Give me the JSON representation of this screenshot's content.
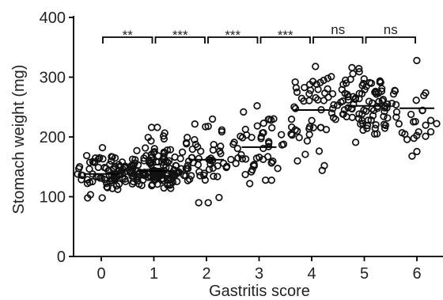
{
  "chart_data": {
    "type": "scatter",
    "xlabel": "Gastritis score",
    "ylabel": "Stomach weight (mg)",
    "categories": [
      "0",
      "1",
      "2",
      "3",
      "4",
      "5",
      "6"
    ],
    "x": [
      0,
      1,
      2,
      3,
      4,
      5,
      6
    ],
    "ylim": [
      0,
      400
    ],
    "yticks": [
      0,
      100,
      200,
      300,
      400
    ],
    "yticklabels": [
      "0",
      "100",
      "200",
      "300",
      "400"
    ],
    "grid": false,
    "group_medians": [
      138,
      143,
      162,
      183,
      245,
      252,
      248
    ],
    "group_ranges": [
      [
        98,
        182
      ],
      [
        114,
        216
      ],
      [
        90,
        230
      ],
      [
        122,
        252
      ],
      [
        144,
        318
      ],
      [
        191,
        316
      ],
      [
        168,
        328
      ]
    ],
    "group_point_counts": [
      75,
      140,
      60,
      50,
      55,
      85,
      30
    ],
    "comparisons": [
      {
        "groups": [
          "0",
          "1"
        ],
        "label": "**"
      },
      {
        "groups": [
          "1",
          "2"
        ],
        "label": "***"
      },
      {
        "groups": [
          "2",
          "3"
        ],
        "label": "***"
      },
      {
        "groups": [
          "3",
          "4"
        ],
        "label": "***"
      },
      {
        "groups": [
          "4",
          "5"
        ],
        "label": "ns"
      },
      {
        "groups": [
          "5",
          "6"
        ],
        "label": "ns"
      }
    ]
  }
}
